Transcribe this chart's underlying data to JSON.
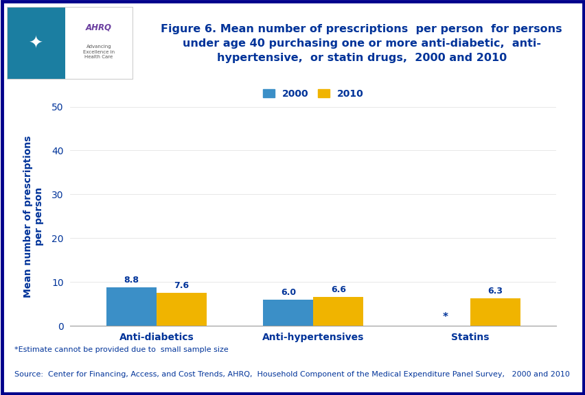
{
  "categories": [
    "Anti-diabetics",
    "Anti-hypertensives",
    "Statins"
  ],
  "values_2000": [
    8.8,
    6.0,
    null
  ],
  "values_2010": [
    7.6,
    6.6,
    6.3
  ],
  "bar_color_2000": "#3B8FC7",
  "bar_color_2010": "#F0B400",
  "bar_width": 0.32,
  "ylim": [
    0,
    50
  ],
  "yticks": [
    0,
    10,
    20,
    30,
    40,
    50
  ],
  "ylabel": "Mean number of prescriptions\nper person",
  "ylabel_color": "#003399",
  "tick_label_color": "#003399",
  "legend_labels": [
    "2000",
    "2010"
  ],
  "title_line1": "Figure 6. Mean number of prescriptions  per person  for persons",
  "title_line2": "under age 40 purchasing one or more anti-diabetic,  anti-",
  "title_line3": "hypertensive,  or statin drugs,  2000 and 2010",
  "title_color": "#003399",
  "footnote1": "*Estimate cannot be provided due to  small sample size",
  "footnote2": "Source:  Center for Financing, Access, and Cost Trends, AHRQ,  Household Component of the Medical Expenditure Panel Survey,   2000 and 2010",
  "footnote_color": "#003399",
  "star_label": "*",
  "header_bar_color": "#00008B",
  "axis_color": "#003399",
  "category_label_color": "#003399",
  "outer_border_color": "#00008B",
  "separator_color": "#00008B",
  "label_value_color_2000": "#003399",
  "label_value_color_2010": "#003399"
}
